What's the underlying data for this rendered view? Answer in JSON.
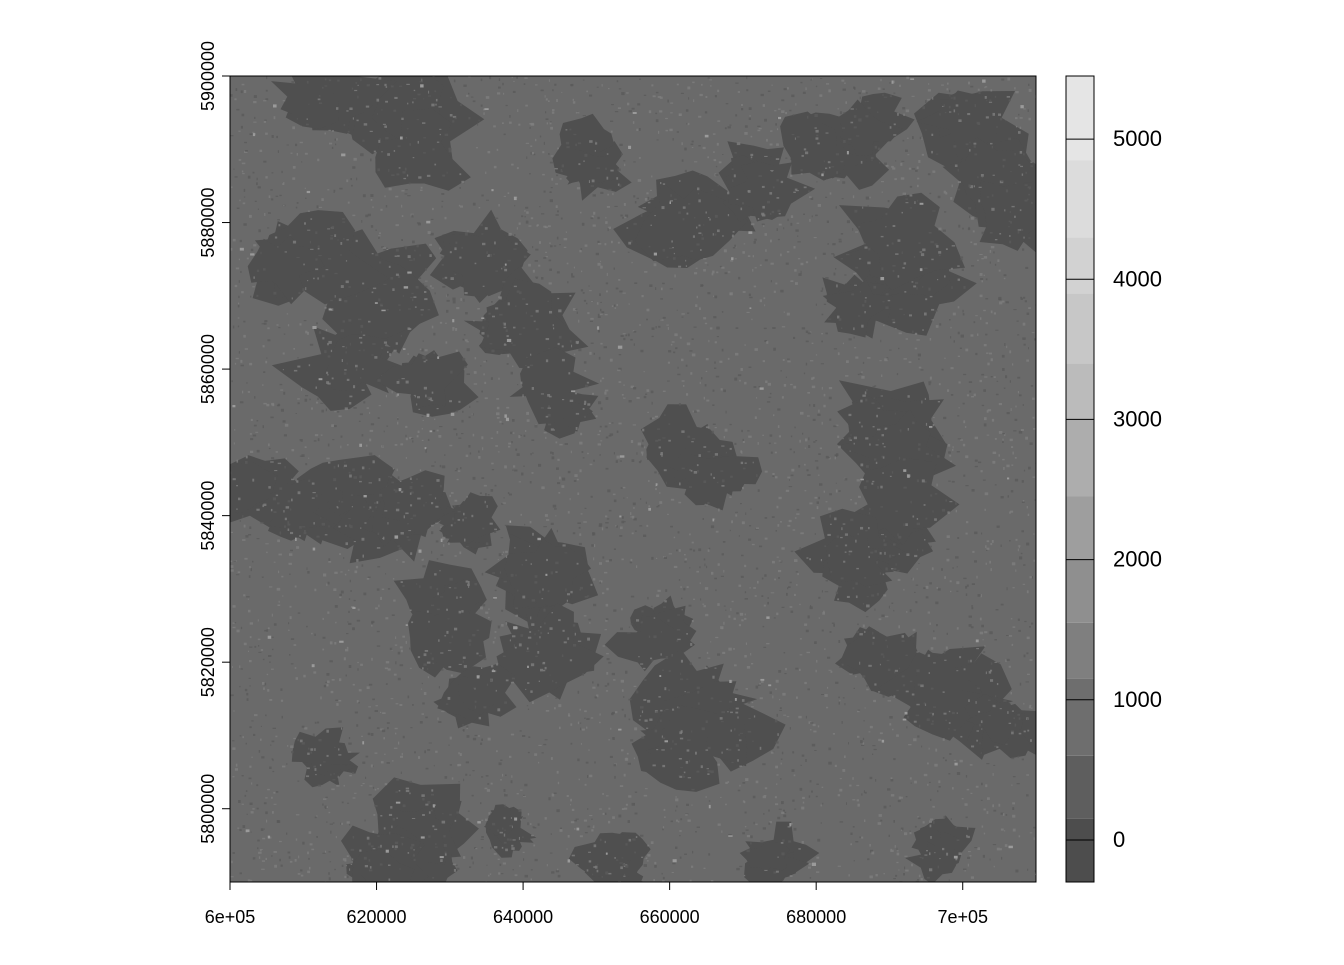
{
  "chart_data": {
    "type": "heatmap",
    "title": "",
    "xlabel": "",
    "ylabel": "",
    "xlim": [
      600000,
      710000
    ],
    "ylim": [
      5790000,
      5900000
    ],
    "x_ticks": [
      {
        "value": 600000,
        "label": "6e+05"
      },
      {
        "value": 620000,
        "label": "620000"
      },
      {
        "value": 640000,
        "label": "640000"
      },
      {
        "value": 660000,
        "label": "660000"
      },
      {
        "value": 680000,
        "label": "680000"
      },
      {
        "value": 700000,
        "label": "7e+05"
      }
    ],
    "y_ticks": [
      {
        "value": 5800000,
        "label": "5800000"
      },
      {
        "value": 5820000,
        "label": "5820000"
      },
      {
        "value": 5840000,
        "label": "5840000"
      },
      {
        "value": 5860000,
        "label": "5860000"
      },
      {
        "value": 5880000,
        "label": "5880000"
      },
      {
        "value": 5900000,
        "label": "5900000"
      }
    ],
    "legend": {
      "placement": "right",
      "range": [
        -300,
        5450
      ],
      "breaks": [
        -300,
        150,
        600,
        1150,
        1550,
        2000,
        2450,
        3000,
        3400,
        3900,
        4300,
        4850,
        5450
      ],
      "colors": [
        "#4d4d4d",
        "#5e5e5e",
        "#6e6e6e",
        "#7f7f7f",
        "#8f8f8f",
        "#9e9e9e",
        "#adadad",
        "#bbbbbb",
        "#c7c7c7",
        "#d2d2d2",
        "#dcdcdc",
        "#e5e5e5"
      ],
      "ticks": [
        {
          "value": 0,
          "label": "0"
        },
        {
          "value": 1000,
          "label": "1000"
        },
        {
          "value": 2000,
          "label": "2000"
        },
        {
          "value": 3000,
          "label": "3000"
        },
        {
          "value": 4000,
          "label": "4000"
        },
        {
          "value": 5000,
          "label": "5000"
        }
      ]
    },
    "raster_palette": {
      "background": "#6a6a6a",
      "dark": "#4f4f4f",
      "speckle_light": "#7e7e7e",
      "speckle_dark": "#5a5a5a",
      "bright": "#9a9a9a"
    }
  }
}
